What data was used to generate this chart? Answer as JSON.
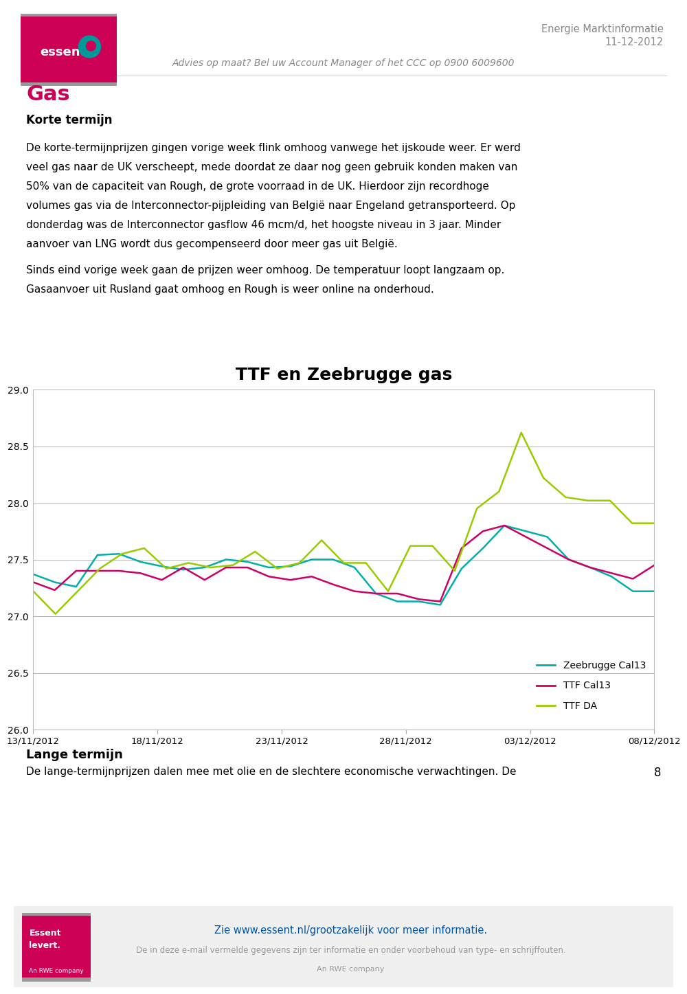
{
  "title": "TTF en Zeebrugge gas",
  "ylim": [
    26.0,
    29.0
  ],
  "yticks": [
    26.0,
    26.5,
    27.0,
    27.5,
    28.0,
    28.5,
    29.0
  ],
  "xlabel_dates": [
    "13/11/2012",
    "18/11/2012",
    "23/11/2012",
    "28/11/2012",
    "03/12/2012",
    "08/12/2012"
  ],
  "zeebrugge_cal13": [
    27.37,
    27.3,
    27.26,
    27.54,
    27.55,
    27.48,
    27.44,
    27.41,
    27.43,
    27.5,
    27.48,
    27.43,
    27.44,
    27.5,
    27.5,
    27.43,
    27.2,
    27.13,
    27.13,
    27.1,
    27.42,
    27.6,
    27.8,
    27.75,
    27.7,
    27.5,
    27.43,
    27.35,
    27.22,
    27.22
  ],
  "ttf_cal13": [
    27.3,
    27.23,
    27.4,
    27.4,
    27.4,
    27.38,
    27.32,
    27.43,
    27.32,
    27.43,
    27.43,
    27.35,
    27.32,
    27.35,
    27.28,
    27.22,
    27.2,
    27.2,
    27.15,
    27.13,
    27.6,
    27.75,
    27.8,
    27.7,
    27.6,
    27.5,
    27.43,
    27.38,
    27.33,
    27.45
  ],
  "ttf_da": [
    27.22,
    27.02,
    27.22,
    27.42,
    27.55,
    27.6,
    27.42,
    27.47,
    27.43,
    27.45,
    27.57,
    27.42,
    27.47,
    27.67,
    27.47,
    27.47,
    27.22,
    27.62,
    27.62,
    27.4,
    27.95,
    28.1,
    28.62,
    28.22,
    28.05,
    28.02,
    28.02,
    27.82,
    27.82
  ],
  "zeebrugge_color": "#00AEAC",
  "ttf_cal13_color": "#CC0066",
  "ttf_da_color": "#99CC00",
  "legend_labels": [
    "Zeebrugge Cal13",
    "TTF Cal13",
    "TTF DA"
  ],
  "header_text1": "Energie Marktinformatie",
  "header_text2": "11-12-2012",
  "header_subtext": "Advies op maat? Bel uw Account Manager of het CCC op 0900 6009600",
  "section_title": "Gas",
  "section_subtitle": "Korte termijn",
  "body_lines": [
    "De korte-termijnprijzen gingen vorige week flink omhoog vanwege het ijskoude weer. Er werd",
    "veel gas naar de UK verscheept, mede doordat ze daar nog geen gebruik konden maken van",
    "50% van de capaciteit van Rough, de grote voorraad in de UK. Hierdoor zijn recordhoge",
    "volumes gas via de Interconnector-pijpleiding van België naar Engeland getransporteerd. Op",
    "donderdag was de Interconnector gasflow 46 mcm/d, het hoogste niveau in 3 jaar. Minder",
    "aanvoer van LNG wordt dus gecompenseerd door meer gas uit België."
  ],
  "body2_lines": [
    "Sinds eind vorige week gaan de prijzen weer omhoog. De temperatuur loopt langzaam op.",
    "Gasaanvoer uit Rusland gaat omhoog en Rough is weer online na onderhoud."
  ],
  "footer_section": "Lange termijn",
  "footer_text": "De lange-termijnprijzen dalen mee met olie en de slechtere economische verwachtingen. De",
  "footer_bottom_text": "Zie www.essent.nl/grootzakelijk voor meer informatie.",
  "footer_disclaimer": "De in deze e-mail vermelde gegevens zijn ter informatie en onder voorbehoud van type- en schrijffouten.",
  "page_number": "8",
  "background_color": "#ffffff",
  "grid_color": "#bbbbbb",
  "text_color": "#000000",
  "header_color": "#888888",
  "gas_title_color": "#CC0055",
  "logo_pink": "#CC0055",
  "logo_gray": "#999999",
  "link_color": "#0055AA"
}
